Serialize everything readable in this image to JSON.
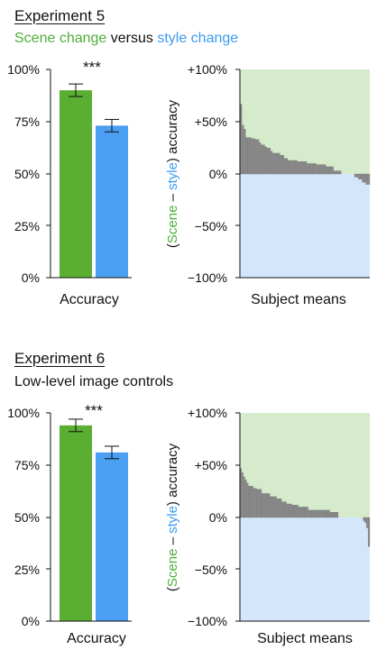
{
  "colors": {
    "scene": "#5aae32",
    "style": "#4a9ff2",
    "scene_bg": "#d6ebcc",
    "style_bg": "#d3e6fb",
    "subject_bar": "#8c8c8c"
  },
  "experiments": [
    {
      "title": "Experiment 5",
      "subtitle_parts": [
        {
          "text": "Scene change",
          "color": "green"
        },
        {
          "text": " versus ",
          "color": "none"
        },
        {
          "text": "style change",
          "color": "blue"
        }
      ],
      "accuracy_panel": {
        "xlabel": "Accuracy",
        "significance": "***",
        "yticks": [
          "100%",
          "75%",
          "50%",
          "25%",
          "0%"
        ]
      },
      "subject_panel": {
        "xlabel": "Subject means",
        "ylabel_parts": [
          {
            "text": "(",
            "color": "none"
          },
          {
            "text": "Scene",
            "color": "green"
          },
          {
            "text": " – ",
            "color": "none"
          },
          {
            "text": "style",
            "color": "blue"
          },
          {
            "text": ") accuracy",
            "color": "none"
          }
        ],
        "yticks": [
          "+100%",
          "+50%",
          "0%",
          "−50%",
          "−100%"
        ]
      }
    },
    {
      "title": "Experiment 6",
      "subtitle_parts": [
        {
          "text": "Low-level image controls",
          "color": "none"
        }
      ],
      "accuracy_panel": {
        "xlabel": "Accuracy",
        "significance": "***",
        "yticks": [
          "100%",
          "75%",
          "50%",
          "25%",
          "0%"
        ]
      },
      "subject_panel": {
        "xlabel": "Subject means",
        "ylabel_parts": [
          {
            "text": "(",
            "color": "none"
          },
          {
            "text": "Scene",
            "color": "green"
          },
          {
            "text": " – ",
            "color": "none"
          },
          {
            "text": "style",
            "color": "blue"
          },
          {
            "text": ") accuracy",
            "color": "none"
          }
        ],
        "yticks": [
          "+100%",
          "+50%",
          "0%",
          "−50%",
          "−100%"
        ]
      }
    }
  ],
  "chart_data": [
    {
      "type": "bar",
      "experiment": "Experiment 5",
      "categories": [
        "Scene change",
        "Style change"
      ],
      "values": [
        90,
        73
      ],
      "errors": [
        3,
        3
      ],
      "xlabel": "Accuracy",
      "ylim": [
        0,
        100
      ]
    },
    {
      "type": "bar",
      "experiment": "Experiment 5",
      "xlabel": "Subject means",
      "ylabel": "(Scene – style) accuracy",
      "ylim": [
        -100,
        100
      ],
      "values": [
        67,
        47,
        43,
        35,
        35,
        35,
        34,
        34,
        33,
        33,
        30,
        28,
        28,
        26,
        25,
        25,
        22,
        20,
        20,
        20,
        20,
        18,
        18,
        15,
        15,
        13,
        13,
        13,
        13,
        13,
        12,
        12,
        12,
        12,
        12,
        10,
        10,
        10,
        10,
        10,
        9,
        9,
        9,
        9,
        9,
        7,
        7,
        7,
        7,
        3,
        3,
        3,
        3,
        0,
        0,
        0,
        0,
        0,
        0,
        0,
        -3,
        -3,
        -5,
        -5,
        -8,
        -8,
        -10,
        -10
      ]
    },
    {
      "type": "bar",
      "experiment": "Experiment 6",
      "categories": [
        "Scene change",
        "Style change"
      ],
      "values": [
        94,
        81
      ],
      "errors": [
        3,
        3
      ],
      "xlabel": "Accuracy",
      "ylim": [
        0,
        100
      ]
    },
    {
      "type": "bar",
      "experiment": "Experiment 6",
      "xlabel": "Subject means",
      "ylabel": "(Scene – style) accuracy",
      "ylim": [
        -100,
        100
      ],
      "values": [
        47,
        43,
        39,
        36,
        33,
        30,
        30,
        30,
        28,
        28,
        27,
        27,
        27,
        23,
        23,
        23,
        23,
        23,
        20,
        20,
        20,
        20,
        18,
        18,
        18,
        15,
        15,
        15,
        13,
        13,
        13,
        12,
        12,
        12,
        12,
        10,
        10,
        10,
        10,
        10,
        10,
        7,
        7,
        7,
        7,
        7,
        7,
        7,
        7,
        7,
        7,
        7,
        7,
        7,
        5,
        5,
        5,
        5,
        5,
        0,
        0,
        0,
        0,
        0,
        0,
        0,
        0,
        0,
        0,
        0,
        0,
        0,
        0,
        0,
        -3,
        -5,
        -10,
        -28
      ]
    }
  ]
}
